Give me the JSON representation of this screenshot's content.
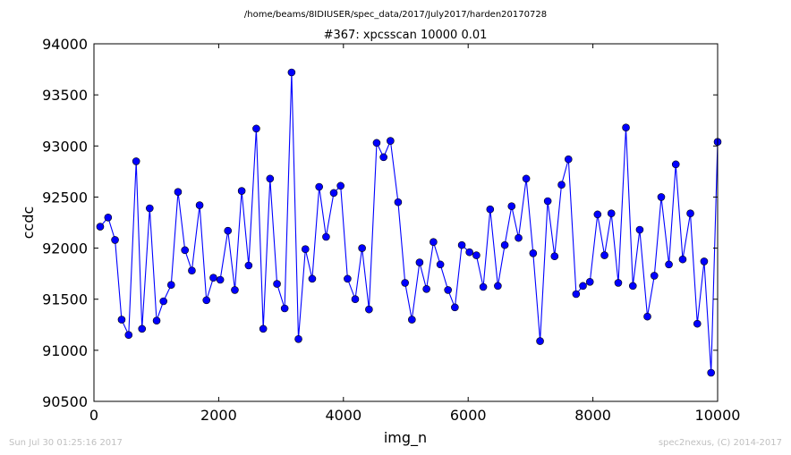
{
  "suptitle": "/home/beams/8IDIUSER/spec_data/2017/July2017/harden20170728",
  "footer_left": "Sun Jul 30 01:25:16 2017",
  "footer_right": "spec2nexus, (C) 2014-2017",
  "colors": {
    "series": "#0000ff",
    "axes": "#000000",
    "footer": "#c0c0c0"
  },
  "chart_data": {
    "type": "line",
    "title": "#367: xpcsscan 10000 0.01",
    "xlabel": "img_n",
    "ylabel": "ccdc",
    "xlim": [
      0,
      10000
    ],
    "ylim": [
      90500,
      94000
    ],
    "xticks": [
      0,
      2000,
      4000,
      6000,
      8000,
      10000
    ],
    "yticks": [
      90500,
      91000,
      91500,
      92000,
      92500,
      93000,
      93500,
      94000
    ],
    "grid": false,
    "markers": "circle",
    "x": [
      100,
      227,
      338,
      444,
      556,
      677,
      771,
      894,
      1005,
      1115,
      1238,
      1348,
      1459,
      1570,
      1694,
      1804,
      1915,
      2025,
      2148,
      2259,
      2369,
      2480,
      2603,
      2714,
      2824,
      2935,
      3058,
      3169,
      3279,
      3390,
      3500,
      3611,
      3722,
      3845,
      3955,
      4066,
      4189,
      4299,
      4410,
      4533,
      4644,
      4754,
      4877,
      4988,
      5098,
      5221,
      5332,
      5443,
      5554,
      5677,
      5787,
      5898,
      6021,
      6132,
      6242,
      6353,
      6476,
      6587,
      6697,
      6808,
      6931,
      7042,
      7153,
      7276,
      7386,
      7497,
      7608,
      7731,
      7841,
      7952,
      8075,
      8186,
      8296,
      8407,
      8530,
      8641,
      8751,
      8874,
      8985,
      9096,
      9219,
      9329,
      9440,
      9563,
      9674,
      9784,
      9895,
      10000
    ],
    "series": [
      {
        "values": [
          92210,
          92300,
          92080,
          91300,
          91150,
          92850,
          91210,
          92390,
          91290,
          91480,
          91640,
          92550,
          91980,
          91780,
          92420,
          91490,
          91710,
          91690,
          92170,
          91590,
          92560,
          91830,
          93170,
          91210,
          92680,
          91650,
          91410,
          93720,
          91110,
          91990,
          91700,
          92600,
          92110,
          92540,
          92610,
          91700,
          91500,
          92000,
          91400,
          93030,
          92890,
          93050,
          92450,
          91660,
          91300,
          91860,
          91600,
          92060,
          91840,
          91590,
          91420,
          92030,
          91960,
          91930,
          91620,
          92380,
          91630,
          92030,
          92410,
          92100,
          92680,
          91950,
          91090,
          92460,
          91920,
          92620,
          92870,
          91550,
          91630,
          91670,
          92330,
          91930,
          92340,
          91660,
          93180,
          91630,
          92180,
          91330,
          91730,
          92500,
          91840,
          92820,
          91890,
          92340,
          91260,
          91870,
          90780,
          93040
        ]
      }
    ]
  }
}
